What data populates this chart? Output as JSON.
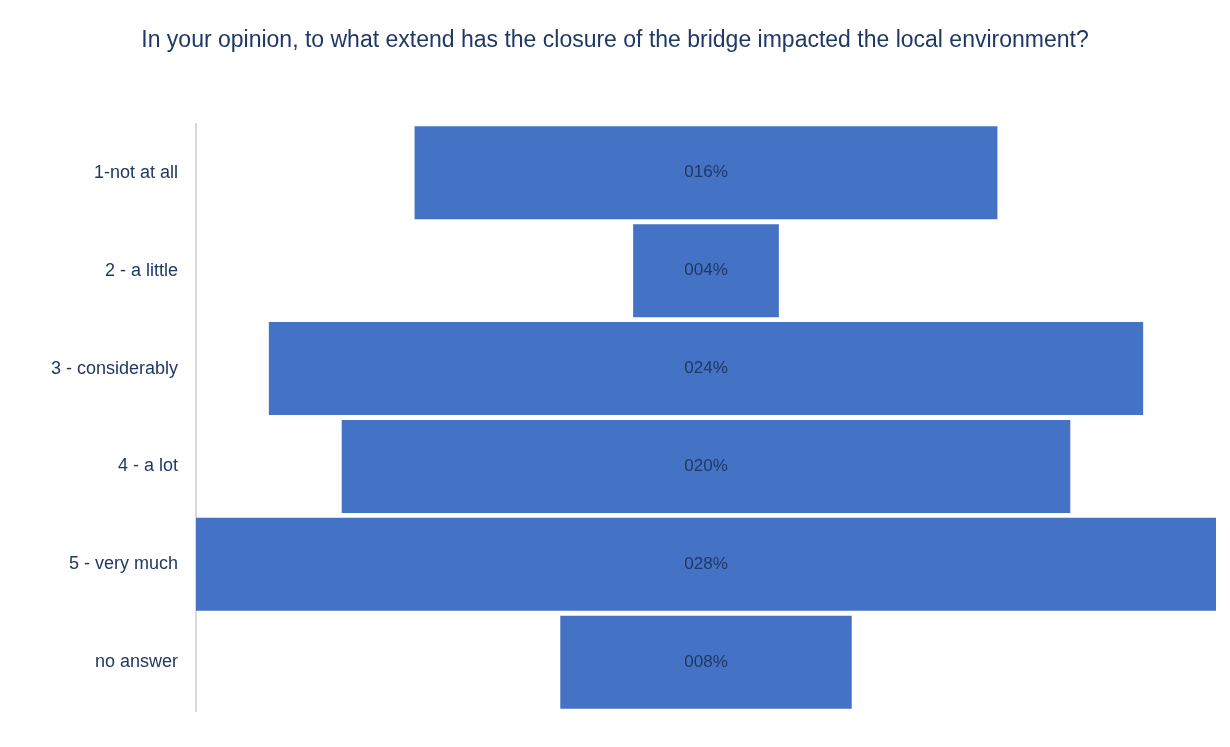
{
  "chart_data": {
    "type": "other",
    "title": "In your opinion, to what extend has the closure of the bridge impacted the local environment?",
    "categories": [
      "1-not at all",
      "2 - a little",
      "3 - considerably",
      "4 - a lot",
      "5 - very much",
      "no answer"
    ],
    "values": [
      16,
      4,
      24,
      20,
      28,
      8
    ],
    "value_labels": [
      "016%",
      "004%",
      "024%",
      "020%",
      "028%",
      "008%"
    ],
    "color": "#4472c4"
  }
}
